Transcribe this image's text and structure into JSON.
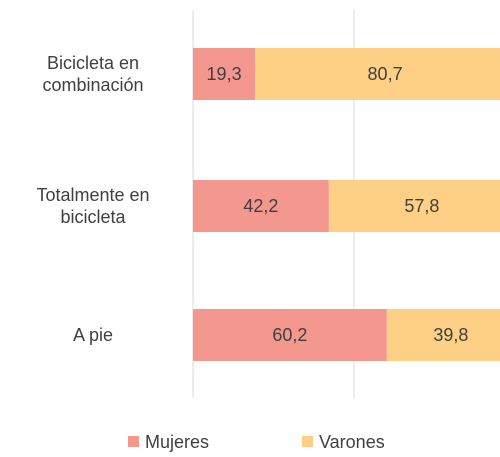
{
  "chart_data": {
    "type": "stacked_barh",
    "categories": [
      "Bicicleta en combinación",
      "Totalmente en bicicleta",
      "A pie"
    ],
    "series": [
      {
        "name": "Mujeres",
        "color": "#f4978e",
        "values": [
          19.3,
          42.2,
          60.2
        ],
        "value_labels": [
          "19,3",
          "42,2",
          "60,2"
        ]
      },
      {
        "name": "Varones",
        "color": "#fdd085",
        "values": [
          80.7,
          57.8,
          39.8
        ],
        "value_labels": [
          "80,7",
          "57,8",
          "39,8"
        ]
      }
    ],
    "xlim": [
      0,
      100
    ],
    "xticks": [
      0,
      50
    ],
    "grid": true,
    "legend": "bottom"
  }
}
